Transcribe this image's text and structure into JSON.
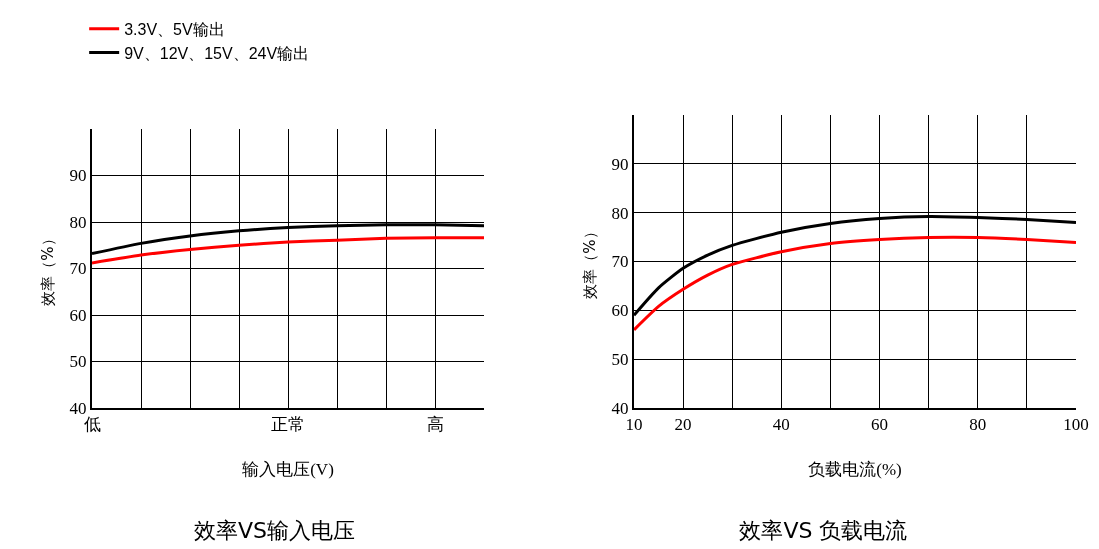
{
  "chart_data": [
    {
      "type": "line",
      "title": "效率VS输入电压",
      "xlabel": "输入电压(V)",
      "ylabel": "效率（%）",
      "legend": "top left",
      "grid": true,
      "line_style": "solid",
      "marker": "none",
      "categories": [
        "低",
        null,
        null,
        null,
        "正常",
        null,
        null,
        "高",
        null
      ],
      "ylim": [
        40,
        100
      ],
      "yticks": [
        40,
        50,
        60,
        70,
        80,
        90
      ],
      "series": [
        {
          "name": "3.3V、5V输出",
          "color": "#ff0000",
          "values": [
            71.2,
            72.9,
            74.1,
            75.0,
            75.7,
            76.1,
            76.5,
            76.6,
            76.6
          ]
        },
        {
          "name": "9V、12V、15V、24V输出",
          "color": "#000000",
          "values": [
            73.2,
            75.4,
            77.0,
            78.1,
            78.8,
            79.2,
            79.4,
            79.4,
            79.2
          ]
        }
      ]
    },
    {
      "type": "line",
      "title": "效率VS 负载电流",
      "xlabel": "负载电流(%)",
      "ylabel": "效率（%）",
      "grid": true,
      "line_style": "solid",
      "marker": "none",
      "x": [
        10,
        15,
        20,
        25,
        30,
        40,
        50,
        60,
        70,
        80,
        90,
        100
      ],
      "xlim": [
        10,
        100
      ],
      "xticks": [
        10,
        20,
        40,
        60,
        80,
        100
      ],
      "ylim": [
        40,
        100
      ],
      "yticks": [
        40,
        50,
        60,
        70,
        80,
        90
      ],
      "series": [
        {
          "color": "#ff0000",
          "values": [
            56,
            60.8,
            64.3,
            67.2,
            69.4,
            72,
            73.7,
            74.5,
            74.9,
            74.9,
            74.5,
            73.9
          ]
        },
        {
          "color": "#000000",
          "values": [
            59,
            64.6,
            68.6,
            71.3,
            73.3,
            76,
            77.8,
            78.8,
            79.2,
            79,
            78.6,
            78
          ]
        }
      ]
    }
  ]
}
